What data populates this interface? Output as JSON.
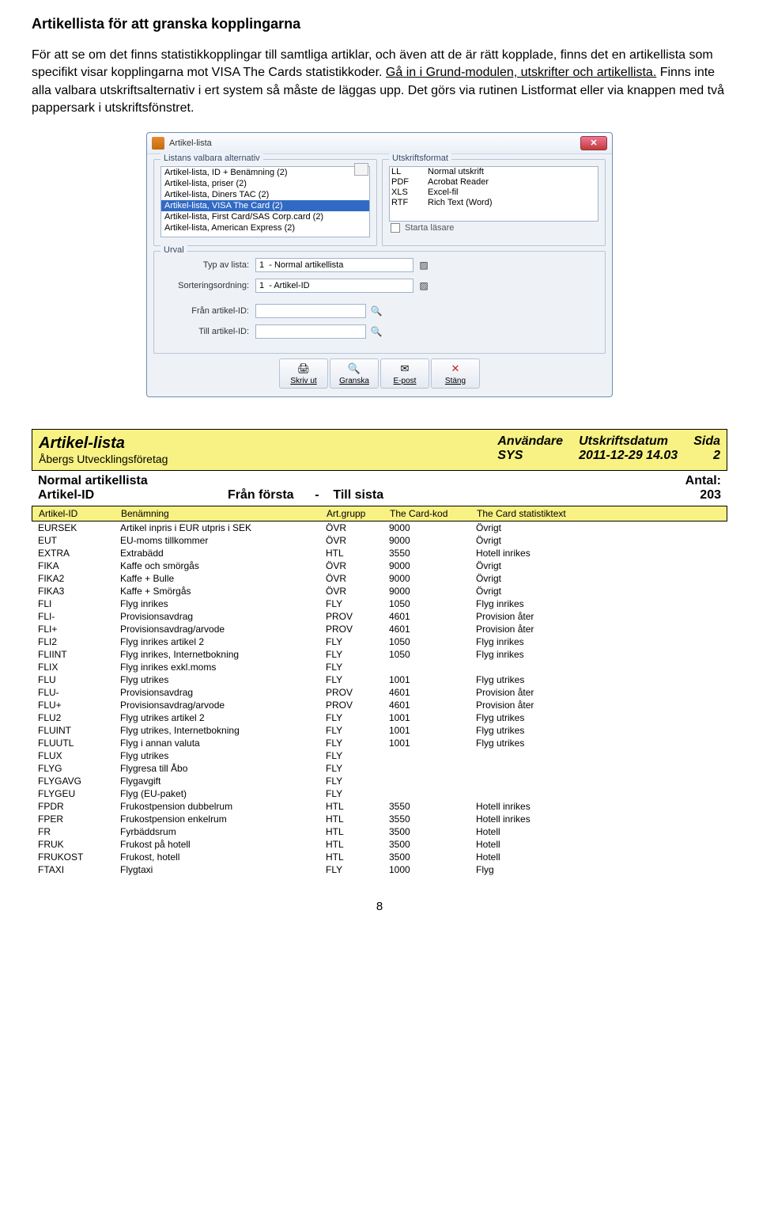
{
  "heading": "Artikellista för att granska kopplingarna",
  "paragraph_pre": "För att se om det finns statistikkopplingar till samtliga artiklar, och även att de är rätt kopplade, finns det en artikellista som specifikt visar kopplingarna mot VISA The Cards statistikkoder. ",
  "paragraph_link": "Gå in i Grund-modulen, utskrifter och artikellista.",
  "paragraph_post": " Finns inte alla valbara utskriftsalternativ i ert system så måste de läggas upp. Det görs via rutinen Listformat eller via knappen med två pappersark i utskriftsfönstret.",
  "dialog": {
    "title": "Artikel-lista",
    "legend_listans": "Listans valbara alternativ",
    "legend_format": "Utskriftsformat",
    "legend_urval": "Urval",
    "list_items": [
      {
        "label": "Artikel-lista, ID + Benämning (2)",
        "selected": false
      },
      {
        "label": "Artikel-lista, priser (2)",
        "selected": false
      },
      {
        "label": "Artikel-lista, Diners TAC (2)",
        "selected": false
      },
      {
        "label": "Artikel-lista, VISA The Card (2)",
        "selected": true
      },
      {
        "label": "Artikel-lista, First Card/SAS Corp.card (2)",
        "selected": false
      },
      {
        "label": "Artikel-lista, American Express (2)",
        "selected": false
      }
    ],
    "formats": [
      {
        "code": "LL",
        "name": "Normal utskrift"
      },
      {
        "code": "PDF",
        "name": "Acrobat Reader"
      },
      {
        "code": "XLS",
        "name": "Excel-fil"
      },
      {
        "code": "RTF",
        "name": "Rich Text (Word)"
      }
    ],
    "starta_lasare": "Starta läsare",
    "urval": {
      "typ_label": "Typ av lista:",
      "typ_value": "1  - Normal artikellista",
      "sort_label": "Sorteringsordning:",
      "sort_value": "1  - Artikel-ID",
      "fran_label": "Från artikel-ID:",
      "fran_value": "",
      "till_label": "Till artikel-ID:",
      "till_value": ""
    },
    "buttons": {
      "print": "Skriv ut",
      "preview": "Granska",
      "email": "E-post",
      "close": "Stäng"
    }
  },
  "report": {
    "header": {
      "title": "Artikel-lista",
      "subtitle": "Åbergs Utvecklingsföretag",
      "user_label": "Användare",
      "user_value": "SYS",
      "date_label": "Utskriftsdatum",
      "date_value": "2011-12-29 14.03",
      "page_label": "Sida",
      "page_value": "2"
    },
    "sub": {
      "left": "Normal artikellista",
      "right_label": "Antal:",
      "row2_c1": "Artikel-ID",
      "row2_c2a": "Från första",
      "row2_dash": "-",
      "row2_c2b": "Till sista",
      "row2_c3": "203"
    },
    "columns": [
      "Artikel-ID",
      "Benämning",
      "Art.grupp",
      "The Card-kod",
      "The Card statistiktext"
    ],
    "rows": [
      [
        "EURSEK",
        "Artikel inpris i EUR utpris i SEK",
        "ÖVR",
        "9000",
        "Övrigt"
      ],
      [
        "EUT",
        "EU-moms tillkommer",
        "ÖVR",
        "9000",
        "Övrigt"
      ],
      [
        "EXTRA",
        "Extrabädd",
        "HTL",
        "3550",
        "Hotell inrikes"
      ],
      [
        "FIKA",
        "Kaffe och smörgås",
        "ÖVR",
        "9000",
        "Övrigt"
      ],
      [
        "FIKA2",
        "Kaffe + Bulle",
        "ÖVR",
        "9000",
        "Övrigt"
      ],
      [
        "FIKA3",
        "Kaffe + Smörgås",
        "ÖVR",
        "9000",
        "Övrigt"
      ],
      [
        "FLI",
        "Flyg inrikes",
        "FLY",
        "1050",
        "Flyg inrikes"
      ],
      [
        "FLI-",
        "Provisionsavdrag",
        "PROV",
        "4601",
        "Provision åter"
      ],
      [
        "FLI+",
        "Provisionsavdrag/arvode",
        "PROV",
        "4601",
        "Provision åter"
      ],
      [
        "FLI2",
        "Flyg inrikes artikel 2",
        "FLY",
        "1050",
        "Flyg inrikes"
      ],
      [
        "FLIINT",
        "Flyg inrikes, Internetbokning",
        "FLY",
        "1050",
        "Flyg inrikes"
      ],
      [
        "FLIX",
        "Flyg inrikes exkl.moms",
        "FLY",
        "",
        ""
      ],
      [
        "FLU",
        "Flyg utrikes",
        "FLY",
        "1001",
        "Flyg utrikes"
      ],
      [
        "FLU-",
        "Provisionsavdrag",
        "PROV",
        "4601",
        "Provision åter"
      ],
      [
        "FLU+",
        "Provisionsavdrag/arvode",
        "PROV",
        "4601",
        "Provision åter"
      ],
      [
        "FLU2",
        "Flyg utrikes artikel 2",
        "FLY",
        "1001",
        "Flyg utrikes"
      ],
      [
        "FLUINT",
        "Flyg utrikes, Internetbokning",
        "FLY",
        "1001",
        "Flyg utrikes"
      ],
      [
        "FLUUTL",
        "Flyg i annan valuta",
        "FLY",
        "1001",
        "Flyg utrikes"
      ],
      [
        "FLUX",
        "Flyg utrikes",
        "FLY",
        "",
        ""
      ],
      [
        "FLYG",
        "Flygresa till Åbo",
        "FLY",
        "",
        ""
      ],
      [
        "FLYGAVG",
        "Flygavgift",
        "FLY",
        "",
        ""
      ],
      [
        "FLYGEU",
        "Flyg (EU-paket)",
        "FLY",
        "",
        ""
      ],
      [
        "FPDR",
        "Frukostpension dubbelrum",
        "HTL",
        "3550",
        "Hotell inrikes"
      ],
      [
        "FPER",
        "Frukostpension enkelrum",
        "HTL",
        "3550",
        "Hotell inrikes"
      ],
      [
        "FR",
        "Fyrbäddsrum",
        "HTL",
        "3500",
        "Hotell"
      ],
      [
        "FRUK",
        "Frukost på hotell",
        "HTL",
        "3500",
        "Hotell"
      ],
      [
        "FRUKOST",
        "Frukost, hotell",
        "HTL",
        "3500",
        "Hotell"
      ],
      [
        "FTAXI",
        "Flygtaxi",
        "FLY",
        "1000",
        "Flyg"
      ]
    ]
  },
  "page_number": "8"
}
